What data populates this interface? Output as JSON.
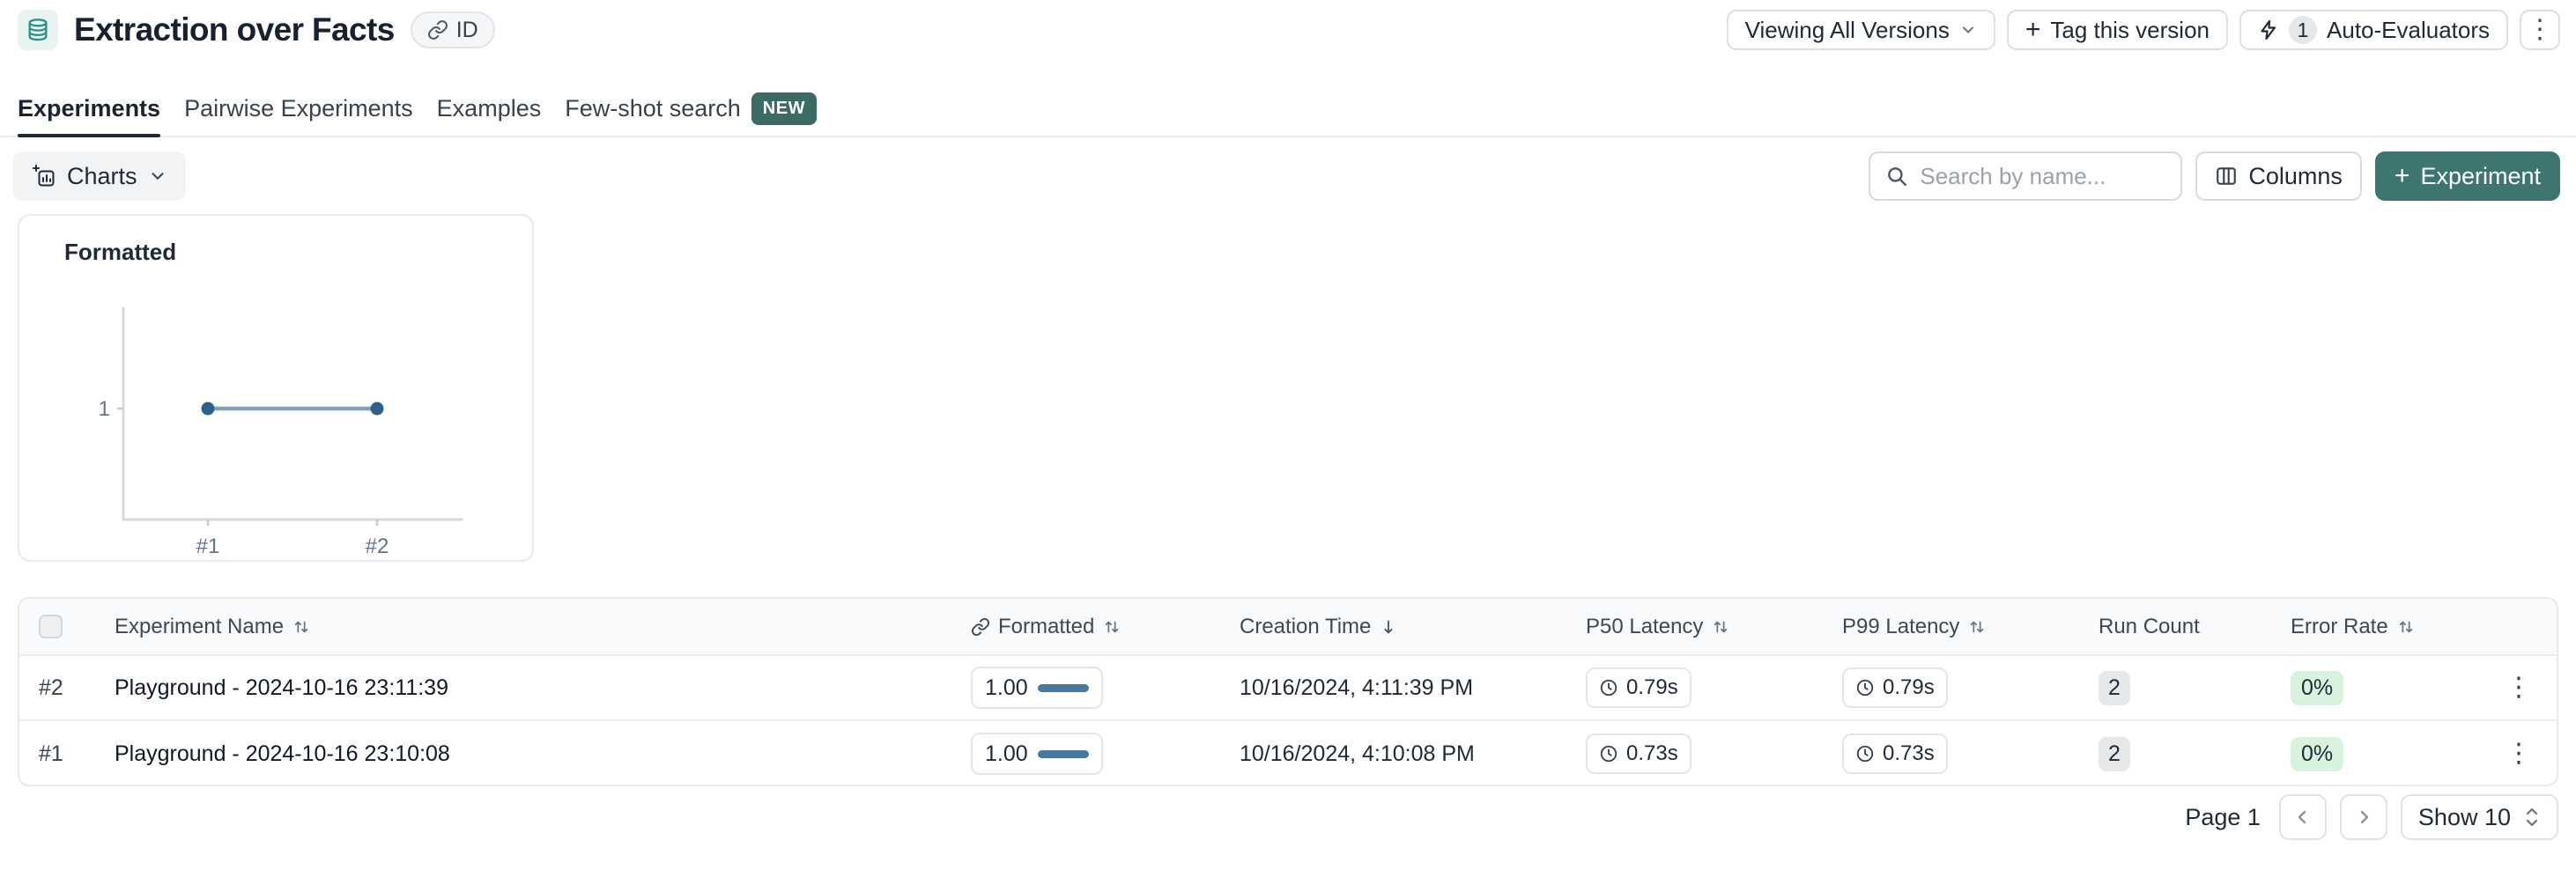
{
  "header": {
    "title": "Extraction over Facts",
    "id_badge": "ID",
    "versions_button": "Viewing All Versions",
    "tag_button": "Tag this version",
    "auto_evaluators_count": "1",
    "auto_evaluators_label": "Auto-Evaluators"
  },
  "tabs": [
    {
      "label": "Experiments",
      "active": true
    },
    {
      "label": "Pairwise Experiments",
      "active": false
    },
    {
      "label": "Examples",
      "active": false
    },
    {
      "label": "Few-shot search",
      "active": false,
      "badge": "NEW"
    }
  ],
  "toolbar": {
    "charts_button": "Charts",
    "search_placeholder": "Search by name...",
    "columns_button": "Columns",
    "experiment_button": "Experiment"
  },
  "chart_data": {
    "type": "line",
    "title": "Formatted",
    "categories": [
      "#1",
      "#2"
    ],
    "values": [
      1,
      1
    ],
    "ylim": [
      0,
      2
    ],
    "yticks": [
      1
    ],
    "xlabel": "",
    "ylabel": "",
    "grid": false,
    "legend": "none",
    "line_color": "#7fa0bf",
    "point_color": "#2f608c",
    "axis_color": "#d6dade",
    "tick_label_color": "#64748b"
  },
  "table": {
    "columns": [
      {
        "label": "Experiment Name",
        "sort": "both"
      },
      {
        "label": "Formatted",
        "sort": "both",
        "icon": "link"
      },
      {
        "label": "Creation Time",
        "sort": "desc"
      },
      {
        "label": "P50 Latency",
        "sort": "both"
      },
      {
        "label": "P99 Latency",
        "sort": "both"
      },
      {
        "label": "Run Count",
        "sort": "none"
      },
      {
        "label": "Error Rate",
        "sort": "both"
      }
    ],
    "rows": [
      {
        "num": "#2",
        "name": "Playground - 2024-10-16 23:11:39",
        "formatted": "1.00",
        "creation": "10/16/2024, 4:11:39 PM",
        "p50": "0.79s",
        "p99": "0.79s",
        "run_count": "2",
        "error_rate": "0%"
      },
      {
        "num": "#1",
        "name": "Playground - 2024-10-16 23:10:08",
        "formatted": "1.00",
        "creation": "10/16/2024, 4:10:08 PM",
        "p50": "0.73s",
        "p99": "0.73s",
        "run_count": "2",
        "error_rate": "0%"
      }
    ]
  },
  "pagination": {
    "page_label": "Page 1",
    "show_label": "Show 10"
  },
  "colors": {
    "accent_teal": "#3e7571",
    "badge_teal": "#3c6b66",
    "bar_blue": "#4678a0",
    "green_badge_bg": "#d9f2de",
    "gray_badge_bg": "#e6e7e9",
    "header_bg": "#f9fafb",
    "border": "#e7e9ec"
  }
}
